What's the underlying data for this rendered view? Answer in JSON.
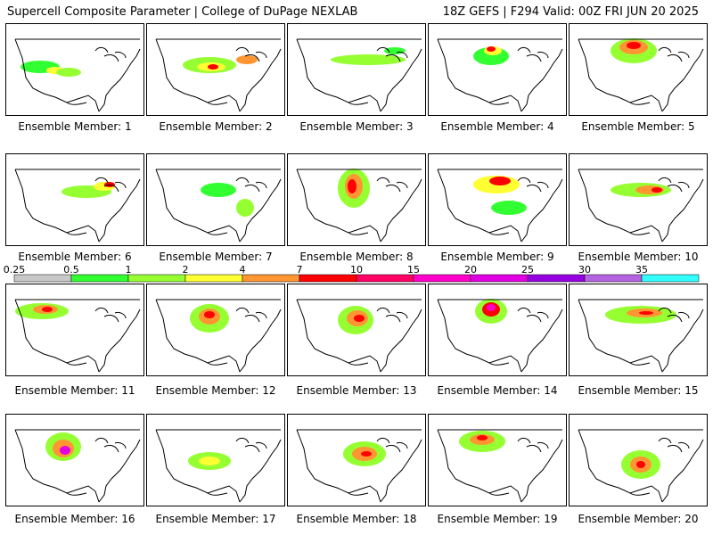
{
  "header": {
    "left": "Supercell Composite Parameter | College of DuPage NEXLAB",
    "right": "18Z GEFS | F294 Valid: 00Z FRI JUN 20 2025"
  },
  "members": [
    {
      "caption": "Ensemble Member: 1"
    },
    {
      "caption": "Ensemble Member: 2"
    },
    {
      "caption": "Ensemble Member: 3"
    },
    {
      "caption": "Ensemble Member: 4"
    },
    {
      "caption": "Ensemble Member: 5"
    },
    {
      "caption": "Ensemble Member: 6"
    },
    {
      "caption": "Ensemble Member: 7"
    },
    {
      "caption": "Ensemble Member: 8"
    },
    {
      "caption": "Ensemble Member: 9"
    },
    {
      "caption": "Ensemble Member: 10"
    },
    {
      "caption": "Ensemble Member: 11"
    },
    {
      "caption": "Ensemble Member: 12"
    },
    {
      "caption": "Ensemble Member: 13"
    },
    {
      "caption": "Ensemble Member: 14"
    },
    {
      "caption": "Ensemble Member: 15"
    },
    {
      "caption": "Ensemble Member: 16"
    },
    {
      "caption": "Ensemble Member: 17"
    },
    {
      "caption": "Ensemble Member: 18"
    },
    {
      "caption": "Ensemble Member: 19"
    },
    {
      "caption": "Ensemble Member: 20"
    }
  ],
  "colorbar": {
    "labels": [
      "0.25",
      "0.5",
      "1",
      "2",
      "4",
      "7",
      "10",
      "15",
      "20",
      "25",
      "30",
      "35"
    ],
    "colors": [
      "#c8c8c8",
      "#32ff32",
      "#96ff32",
      "#ffff32",
      "#ff9632",
      "#ff0000",
      "#ff0064",
      "#ff00c8",
      "#e100e1",
      "#9600e1",
      "#b464e1",
      "#32ffff"
    ]
  }
}
